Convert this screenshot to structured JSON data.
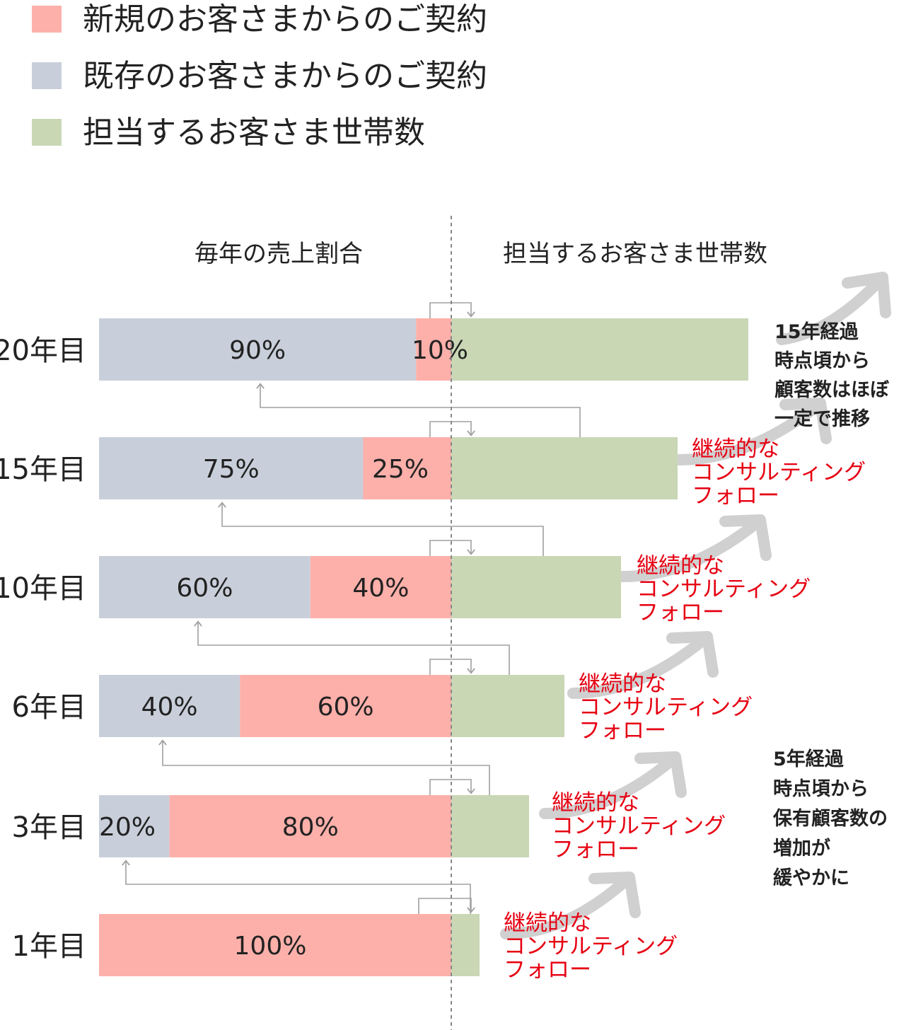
{
  "legend": [
    {
      "label": "新規のお客さまからのご契約",
      "color": "#fdb0aa"
    },
    {
      "label": "既存のお客さまからのご契約",
      "color": "#c9cfda"
    },
    {
      "label": "担当するお客さま世帯数",
      "color": "#c9d7b5"
    }
  ],
  "headers": {
    "left": "毎年の売上割合",
    "right": "担当するお客さま世帯数"
  },
  "follow_label": [
    "継続的な",
    "コンサルティング",
    "フォロー"
  ],
  "notes": {
    "top": [
      "15年経過",
      "時点頃から",
      "顧客数はほぼ",
      "一定で推移"
    ],
    "middle": [
      "5年経過",
      "時点頃から",
      "保有顧客数の",
      "増加が",
      "緩やかに"
    ]
  },
  "chart_data": {
    "type": "bar",
    "orientation": "horizontal",
    "categories": [
      "20年目",
      "15年目",
      "10年目",
      "6年目",
      "3年目",
      "1年目"
    ],
    "series": [
      {
        "name": "既存のお客さまからのご契約",
        "values": [
          90,
          75,
          60,
          40,
          20,
          0
        ],
        "labels": [
          "90%",
          "75%",
          "60%",
          "40%",
          "20%",
          ""
        ]
      },
      {
        "name": "新規のお客さまからのご契約",
        "values": [
          10,
          25,
          40,
          60,
          80,
          100
        ],
        "labels": [
          "10%",
          "25%",
          "40%",
          "60%",
          "80%",
          "100%"
        ]
      },
      {
        "name": "担当するお客さま世帯数",
        "values": [
          420,
          320,
          240,
          160,
          110,
          40
        ]
      }
    ],
    "colors": {
      "existing": "#c9cfda",
      "new": "#fdb0aa",
      "households": "#c9d7b5",
      "follow": "#e60012",
      "arrow": "#d0d0d0",
      "connector": "#a0a0a0"
    }
  }
}
